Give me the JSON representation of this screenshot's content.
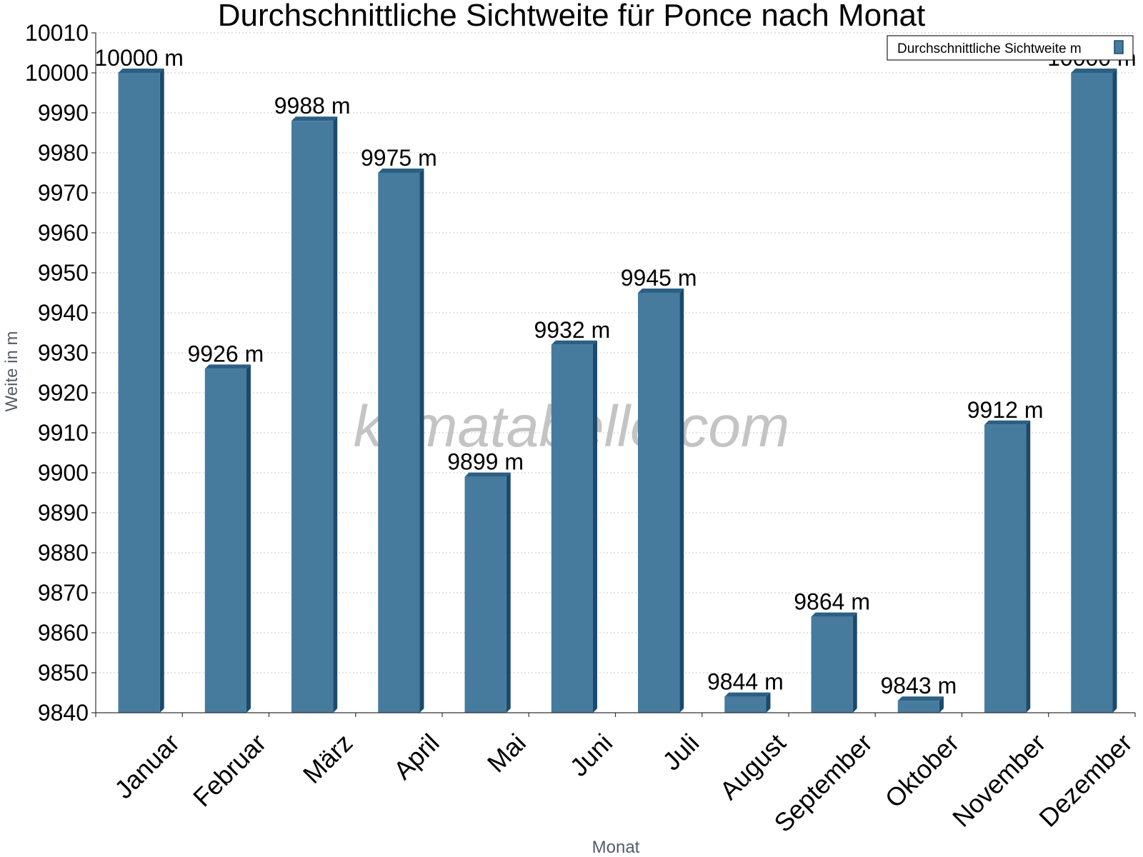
{
  "chart_data": {
    "type": "bar",
    "title": "Durchschnittliche Sichtweite für Ponce nach Monat",
    "xlabel": "Monat",
    "ylabel": "Weite in m",
    "ylim": [
      9840,
      10010
    ],
    "ytick_step": 10,
    "grid": true,
    "legend_position": "top-right",
    "watermark": "klimatabelle.com",
    "value_suffix": " m",
    "categories": [
      "Januar",
      "Februar",
      "März",
      "April",
      "Mai",
      "Juni",
      "Juli",
      "August",
      "September",
      "Oktober",
      "November",
      "Dezember"
    ],
    "series": [
      {
        "name": "Durchschnittliche Sichtweite m",
        "color": "#467b9e",
        "values": [
          10000,
          9926,
          9988,
          9975,
          9899,
          9932,
          9945,
          9844,
          9864,
          9843,
          9912,
          10000
        ]
      }
    ]
  }
}
